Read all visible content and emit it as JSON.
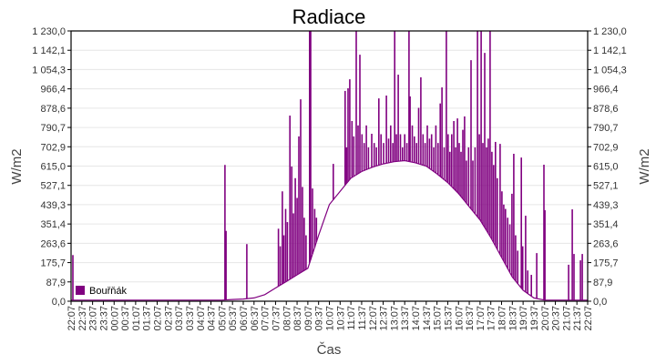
{
  "chart_data": {
    "type": "line",
    "title": "Radiace",
    "xlabel": "Čas",
    "ylabel": "W/m2",
    "ylabel_right": "W/m2",
    "ylim": [
      0,
      1230
    ],
    "grid": true,
    "legend_position": "bottom-left",
    "color": "#800080",
    "yticks": [
      "0,0",
      "87,9",
      "175,7",
      "263,6",
      "351,4",
      "439,3",
      "527,1",
      "615,0",
      "702,9",
      "790,7",
      "878,6",
      "966,4",
      "1 054,3",
      "1 142,1",
      "1 230,0"
    ],
    "xticks": [
      "22:07",
      "22:37",
      "23:07",
      "23:37",
      "00:07",
      "00:37",
      "01:07",
      "01:37",
      "02:07",
      "02:37",
      "03:07",
      "03:37",
      "04:07",
      "04:37",
      "05:07",
      "05:37",
      "06:07",
      "06:37",
      "07:07",
      "07:37",
      "08:07",
      "08:37",
      "09:07",
      "09:37",
      "10:07",
      "10:37",
      "11:07",
      "11:37",
      "12:07",
      "12:37",
      "13:07",
      "13:37",
      "14:07",
      "14:37",
      "15:07",
      "15:37",
      "16:07",
      "16:37",
      "17:07",
      "17:37",
      "18:07",
      "18:37",
      "19:07",
      "19:37",
      "20:07",
      "20:37",
      "21:07",
      "21:37",
      "22:07"
    ],
    "series": [
      {
        "name": "Bouřňák",
        "baseline": [
          5,
          5,
          5,
          5,
          5,
          5,
          5,
          5,
          5,
          5,
          5,
          5,
          5,
          5,
          5,
          8,
          10,
          15,
          30,
          60,
          90,
          120,
          150,
          300,
          440,
          500,
          560,
          590,
          610,
          625,
          635,
          640,
          630,
          615,
          580,
          540,
          490,
          430,
          370,
          290,
          200,
          110,
          50,
          15,
          5,
          5,
          5,
          5,
          5
        ],
        "spikes": [
          [
            "22:12",
            210
          ],
          [
            "05:16",
            620
          ],
          [
            "05:19",
            320
          ],
          [
            "06:17",
            260
          ],
          [
            "07:45",
            330
          ],
          [
            "07:50",
            250
          ],
          [
            "07:56",
            500
          ],
          [
            "08:00",
            300
          ],
          [
            "08:05",
            420
          ],
          [
            "08:10",
            360
          ],
          [
            "08:17",
            845
          ],
          [
            "08:22",
            613
          ],
          [
            "08:27",
            400
          ],
          [
            "08:32",
            560
          ],
          [
            "08:37",
            470
          ],
          [
            "08:42",
            750
          ],
          [
            "08:47",
            919
          ],
          [
            "08:52",
            520
          ],
          [
            "08:57",
            380
          ],
          [
            "09:02",
            300
          ],
          [
            "09:12",
            1230
          ],
          [
            "09:15",
            1230
          ],
          [
            "09:20",
            513
          ],
          [
            "09:26",
            420
          ],
          [
            "09:31",
            380
          ],
          [
            "10:18",
            625
          ],
          [
            "10:51",
            957
          ],
          [
            "10:55",
            700
          ],
          [
            "10:59",
            969
          ],
          [
            "11:04",
            1010
          ],
          [
            "11:10",
            820
          ],
          [
            "11:15",
            750
          ],
          [
            "11:22",
            1230
          ],
          [
            "11:27",
            800
          ],
          [
            "11:32",
            1122
          ],
          [
            "11:38",
            760
          ],
          [
            "11:44",
            720
          ],
          [
            "11:50",
            800
          ],
          [
            "11:56",
            700
          ],
          [
            "12:05",
            762
          ],
          [
            "12:12",
            720
          ],
          [
            "12:18",
            700
          ],
          [
            "12:25",
            923
          ],
          [
            "12:31",
            760
          ],
          [
            "12:38",
            720
          ],
          [
            "12:46",
            936
          ],
          [
            "12:52",
            740
          ],
          [
            "12:58",
            800
          ],
          [
            "13:04",
            720
          ],
          [
            "13:09",
            1230
          ],
          [
            "13:14",
            760
          ],
          [
            "13:19",
            1031
          ],
          [
            "13:25",
            760
          ],
          [
            "13:31",
            700
          ],
          [
            "13:37",
            760
          ],
          [
            "13:43",
            720
          ],
          [
            "13:49",
            1230
          ],
          [
            "13:52",
            932
          ],
          [
            "13:58",
            800
          ],
          [
            "14:04",
            750
          ],
          [
            "14:10",
            720
          ],
          [
            "14:16",
            880
          ],
          [
            "14:22",
            1019
          ],
          [
            "14:28",
            760
          ],
          [
            "14:34",
            720
          ],
          [
            "14:40",
            800
          ],
          [
            "14:46",
            740
          ],
          [
            "14:52",
            760
          ],
          [
            "14:58",
            700
          ],
          [
            "15:04",
            800
          ],
          [
            "15:10",
            720
          ],
          [
            "15:16",
            900
          ],
          [
            "15:21",
            973
          ],
          [
            "15:27",
            700
          ],
          [
            "15:33",
            1230
          ],
          [
            "15:38",
            760
          ],
          [
            "15:43",
            680
          ],
          [
            "15:48",
            760
          ],
          [
            "15:54",
            820
          ],
          [
            "15:59",
            700
          ],
          [
            "16:04",
            832
          ],
          [
            "16:09",
            720
          ],
          [
            "16:14",
            680
          ],
          [
            "16:19",
            780
          ],
          [
            "16:24",
            841
          ],
          [
            "16:29",
            640
          ],
          [
            "16:35",
            700
          ],
          [
            "16:42",
            1097
          ],
          [
            "16:47",
            640
          ],
          [
            "16:53",
            700
          ],
          [
            "17:00",
            1230
          ],
          [
            "17:05",
            760
          ],
          [
            "17:10",
            1230
          ],
          [
            "17:15",
            720
          ],
          [
            "17:20",
            1130
          ],
          [
            "17:25",
            700
          ],
          [
            "17:30",
            740
          ],
          [
            "17:35",
            1230
          ],
          [
            "17:40",
            680
          ],
          [
            "17:45",
            620
          ],
          [
            "17:50",
            725
          ],
          [
            "17:55",
            560
          ],
          [
            "18:03",
            716
          ],
          [
            "18:08",
            500
          ],
          [
            "18:13",
            440
          ],
          [
            "18:18",
            420
          ],
          [
            "18:24",
            380
          ],
          [
            "18:30",
            350
          ],
          [
            "18:36",
            489
          ],
          [
            "18:41",
            671
          ],
          [
            "18:46",
            300
          ],
          [
            "18:52",
            230
          ],
          [
            "19:02",
            654
          ],
          [
            "19:06",
            250
          ],
          [
            "19:14",
            389
          ],
          [
            "19:20",
            140
          ],
          [
            "19:30",
            120
          ],
          [
            "19:45",
            219
          ],
          [
            "20:05",
            621
          ],
          [
            "20:08",
            414
          ],
          [
            "21:14",
            166
          ],
          [
            "21:24",
            418
          ],
          [
            "21:29",
            215
          ],
          [
            "21:47",
            186
          ],
          [
            "21:52",
            215
          ]
        ]
      }
    ]
  }
}
